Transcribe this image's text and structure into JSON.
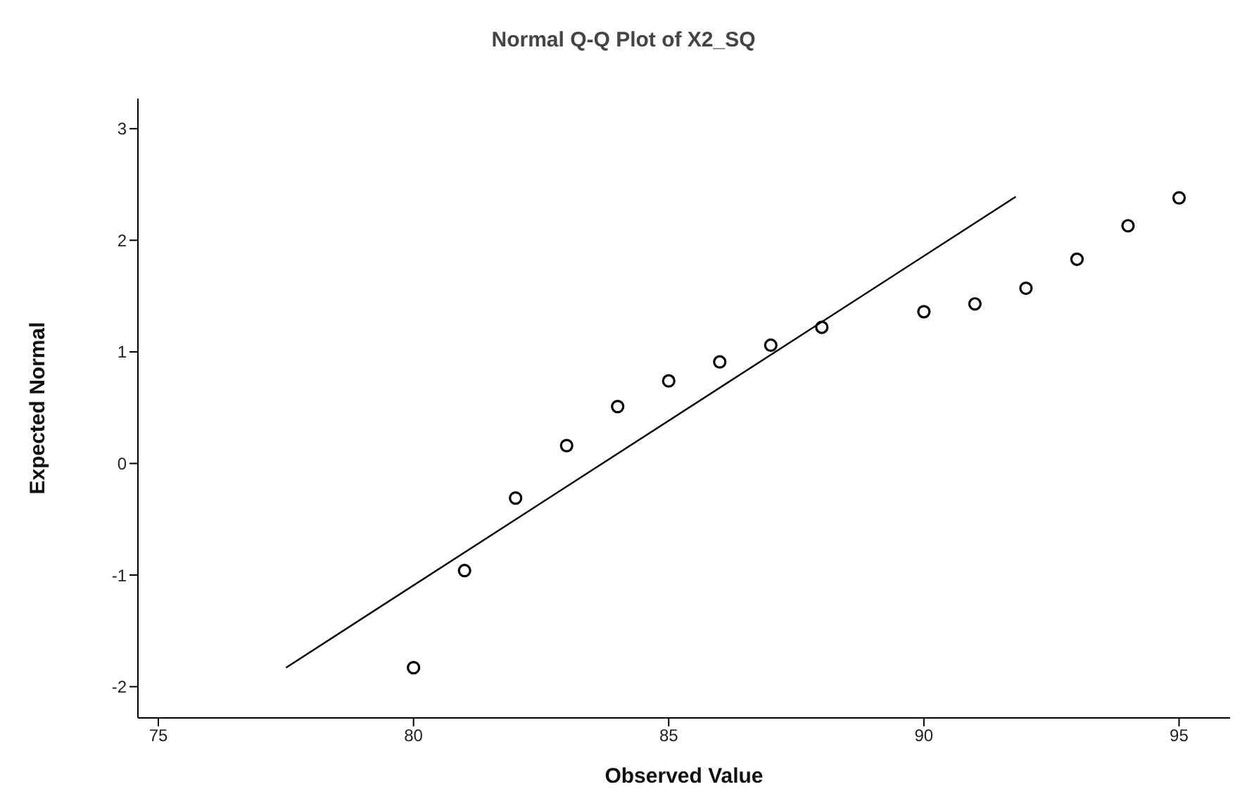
{
  "chart_data": {
    "type": "scatter",
    "title": "Normal Q-Q Plot of X2_SQ",
    "xlabel": "Observed Value",
    "ylabel": "Expected Normal",
    "xlim": [
      74.6,
      96
    ],
    "ylim": [
      -2.28,
      3.27
    ],
    "xticks": [
      75,
      80,
      85,
      90,
      95
    ],
    "yticks": [
      -2,
      -1,
      0,
      1,
      2,
      3
    ],
    "grid": false,
    "legend": false,
    "series": [
      {
        "color": "#000000",
        "marker": "circle",
        "x": [
          80,
          81,
          82,
          83,
          84,
          85,
          86,
          87,
          88,
          90,
          91,
          92,
          93,
          94,
          95
        ],
        "values": [
          -1.83,
          -0.96,
          -0.31,
          0.16,
          0.51,
          0.74,
          0.91,
          1.06,
          1.22,
          1.36,
          1.43,
          1.57,
          1.83,
          2.13,
          2.38
        ]
      },
      {
        "type": "line",
        "color": "#000000",
        "marker": "none",
        "x": [
          77.5,
          91.8
        ],
        "values": [
          -1.83,
          2.39
        ]
      }
    ]
  }
}
